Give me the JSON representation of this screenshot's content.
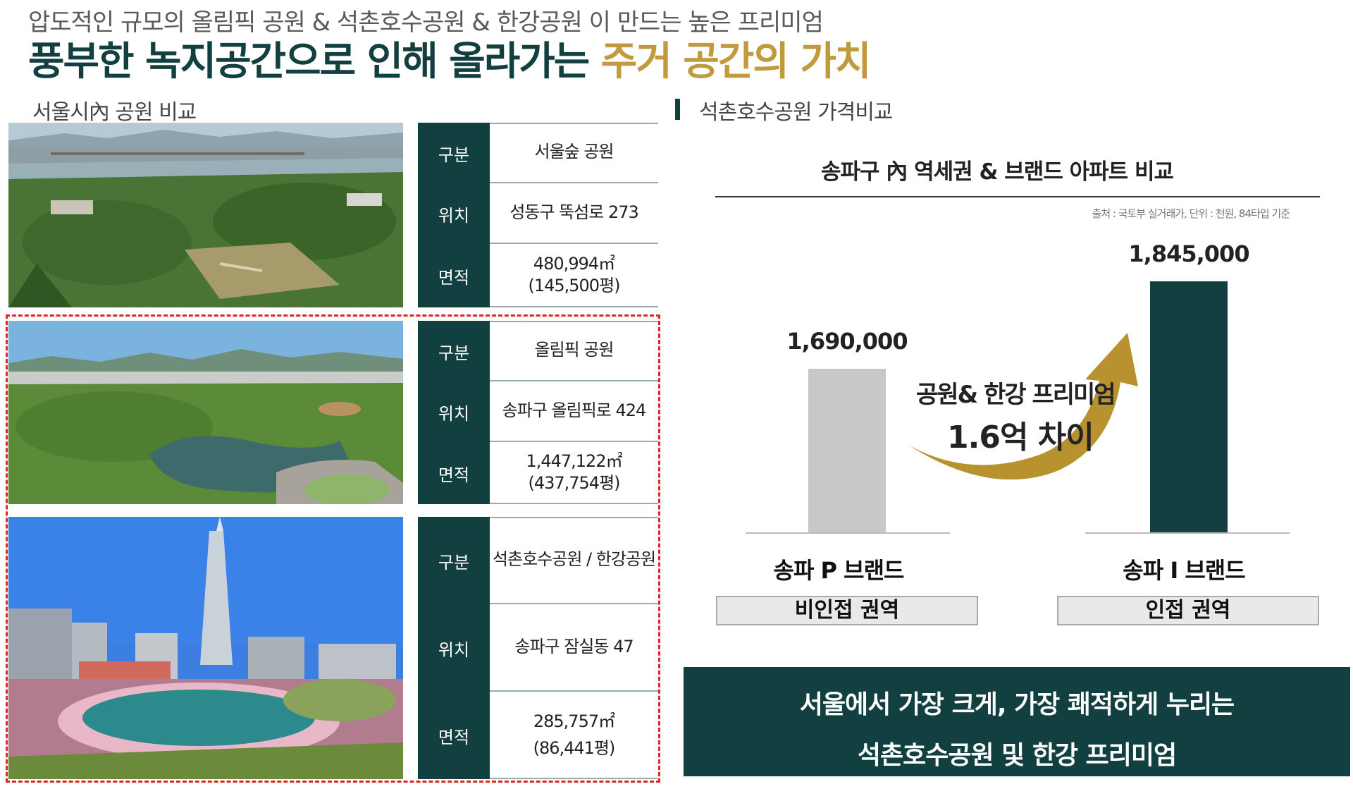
{
  "header": {
    "subtitle": "압도적인 규모의 올림픽 공원 & 석촌호수공원 & 한강공원 이 만드는 높은 프리미엄",
    "headline_main": "풍부한 녹지공간으로 인해 올라가는 ",
    "headline_accent": "주거 공간의 가치"
  },
  "left_section": {
    "title": "서울시內 공원 비교",
    "parks": [
      {
        "rows": [
          {
            "label": "구분",
            "value": "서울숲 공원"
          },
          {
            "label": "위치",
            "value": "성동구 뚝섬로 273"
          },
          {
            "label": "면적",
            "value": "480,994㎡\n(145,500평)"
          }
        ]
      },
      {
        "rows": [
          {
            "label": "구분",
            "value": "올림픽 공원"
          },
          {
            "label": "위치",
            "value": "송파구 올림픽로 424"
          },
          {
            "label": "면적",
            "value": "1,447,122㎡\n(437,754평)"
          }
        ]
      },
      {
        "rows": [
          {
            "label": "구분",
            "value": "석촌호수공원 / 한강공원"
          },
          {
            "label": "위치",
            "value": "송파구 잠실동 47"
          },
          {
            "label": "면적",
            "value": "285,757㎡\n(86,441평)"
          }
        ]
      }
    ]
  },
  "right_section": {
    "title": "석촌호수공원 가격비교"
  },
  "chart_data": {
    "type": "bar",
    "title": "송파구 內 역세권 & 브랜드 아파트 비교",
    "source": "출처 : 국토부 실거래가, 단위 : 천원, 84타입 기준",
    "categories": [
      "송파 P 브랜드",
      "송파 I 브랜드"
    ],
    "values": [
      1690000,
      1845000
    ],
    "value_labels": [
      "1,690,000",
      "1,845,000"
    ],
    "zones": [
      "비인접 권역",
      "인접 권역"
    ],
    "ylim": [
      0,
      2000000
    ],
    "bar_colors": [
      "#c8c8c8",
      "#123f40"
    ],
    "annotation_line1": "공원& 한강 프리미엄",
    "annotation_line2": "1.6억 차이"
  },
  "banner": {
    "line1": "서울에서 가장 크게, 가장 쾌적하게 누리는",
    "line2": "석촌호수공원 및 한강 프리미엄"
  },
  "colors": {
    "primary": "#123f40",
    "accent_gold": "#c19a3d",
    "highlight_border": "#e02424"
  }
}
